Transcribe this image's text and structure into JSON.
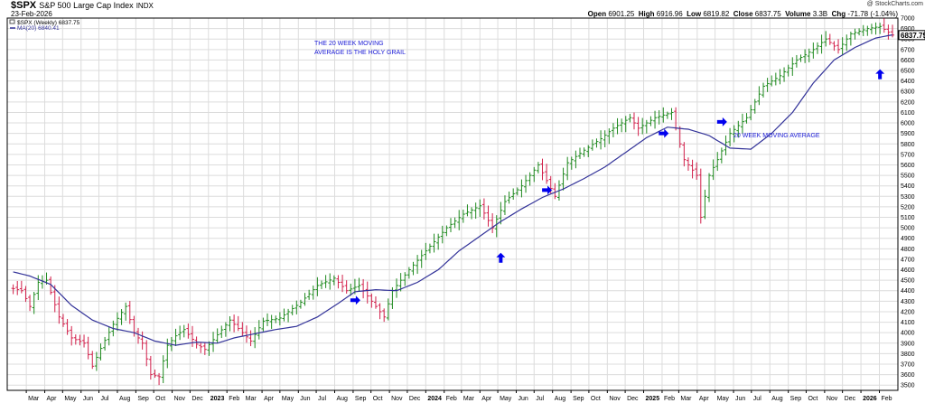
{
  "header": {
    "symbol": "$SPX",
    "name": "S&P 500 Large Cap Index",
    "exchange": "INDX",
    "date": "23-Feb-2026",
    "credit": "@ StockCharts.com",
    "open_label": "Open",
    "open": "6901.25",
    "high_label": "High",
    "high": "6916.96",
    "low_label": "Low",
    "low": "6819.82",
    "close_label": "Close",
    "close": "6837.75",
    "volume_label": "Volume",
    "volume": "3.3B",
    "chg_label": "Chg",
    "chg": "-71.78 (-1.04%)"
  },
  "legend": {
    "price_entry": "$SPX (Weekly) 6837.75",
    "ma_entry": "MA(20) 6840.41"
  },
  "colors": {
    "up_bar": "#1f8a1f",
    "down_bar": "#d21f4a",
    "ma_line": "#333399",
    "annotation": "#1a1ad6",
    "arrow": "#0000ee",
    "grid": "#dcdcdc",
    "frame": "#000000"
  },
  "chart_data": {
    "type": "ohlc",
    "interval": "weekly",
    "title": "$SPX S&P 500 Large Cap Index INDX",
    "ylim": [
      3450,
      7000
    ],
    "y_ticks": [
      3500,
      3600,
      3700,
      3800,
      3900,
      4000,
      4100,
      4200,
      4300,
      4400,
      4500,
      4600,
      4700,
      4800,
      4900,
      5000,
      5100,
      5200,
      5300,
      5400,
      5500,
      5600,
      5700,
      5800,
      5900,
      6000,
      6100,
      6200,
      6300,
      6400,
      6500,
      6600,
      6700,
      6800,
      6900,
      7000
    ],
    "y_axis_side": "right",
    "grid": true,
    "last_price_label": "6837.75",
    "ma_value_label": "6840.41",
    "x_tick_labels": [
      "Mar",
      "Apr",
      "May",
      "Jun",
      "Jul",
      "Aug",
      "Sep",
      "Oct",
      "Nov",
      "Dec",
      "2023",
      "Feb",
      "Mar",
      "Apr",
      "May",
      "Jun",
      "Jul",
      "Aug",
      "Sep",
      "Oct",
      "Nov",
      "Dec",
      "2024",
      "Feb",
      "Mar",
      "Apr",
      "May",
      "Jun",
      "Jul",
      "Aug",
      "Sep",
      "Oct",
      "Nov",
      "Dec",
      "2025",
      "Feb",
      "Mar",
      "Apr",
      "May",
      "Jun",
      "Jul",
      "Aug",
      "Sep",
      "Oct",
      "Nov",
      "Dec",
      "2026",
      "Feb"
    ],
    "bold_x_ticks": [
      "2023",
      "2024",
      "2025",
      "2026"
    ],
    "series": [
      {
        "name": "$SPX (Weekly)",
        "kind": "ohlc",
        "anchors": [
          [
            "2022-02-07",
            4420
          ],
          [
            "2022-02-21",
            4400
          ],
          [
            "2022-03-07",
            4250
          ],
          [
            "2022-03-21",
            4480
          ],
          [
            "2022-04-04",
            4500
          ],
          [
            "2022-04-25",
            4150
          ],
          [
            "2022-05-16",
            3950
          ],
          [
            "2022-06-06",
            3900
          ],
          [
            "2022-06-20",
            3680
          ],
          [
            "2022-07-04",
            3850
          ],
          [
            "2022-07-25",
            4080
          ],
          [
            "2022-08-15",
            4250
          ],
          [
            "2022-08-29",
            4000
          ],
          [
            "2022-09-12",
            3900
          ],
          [
            "2022-09-26",
            3600
          ],
          [
            "2022-10-10",
            3580
          ],
          [
            "2022-10-24",
            3880
          ],
          [
            "2022-11-07",
            3970
          ],
          [
            "2022-11-21",
            4030
          ],
          [
            "2022-12-12",
            3890
          ],
          [
            "2022-12-26",
            3840
          ],
          [
            "2023-01-16",
            3980
          ],
          [
            "2023-02-06",
            4120
          ],
          [
            "2023-03-13",
            3920
          ],
          [
            "2023-04-03",
            4110
          ],
          [
            "2023-05-01",
            4140
          ],
          [
            "2023-06-05",
            4290
          ],
          [
            "2023-07-03",
            4450
          ],
          [
            "2023-07-31",
            4520
          ],
          [
            "2023-08-21",
            4400
          ],
          [
            "2023-09-11",
            4450
          ],
          [
            "2023-10-02",
            4300
          ],
          [
            "2023-10-23",
            4150
          ],
          [
            "2023-11-06",
            4400
          ],
          [
            "2023-12-04",
            4600
          ],
          [
            "2024-01-01",
            4780
          ],
          [
            "2024-02-05",
            5000
          ],
          [
            "2024-03-04",
            5130
          ],
          [
            "2024-04-01",
            5210
          ],
          [
            "2024-04-22",
            5000
          ],
          [
            "2024-05-13",
            5250
          ],
          [
            "2024-06-10",
            5400
          ],
          [
            "2024-07-08",
            5600
          ],
          [
            "2024-08-05",
            5300
          ],
          [
            "2024-08-26",
            5620
          ],
          [
            "2024-09-23",
            5740
          ],
          [
            "2024-10-21",
            5850
          ],
          [
            "2024-11-11",
            5950
          ],
          [
            "2024-12-09",
            6050
          ],
          [
            "2024-12-23",
            5950
          ],
          [
            "2025-01-20",
            6050
          ],
          [
            "2025-02-17",
            6100
          ],
          [
            "2025-03-10",
            5650
          ],
          [
            "2025-03-31",
            5500
          ],
          [
            "2025-04-07",
            5100
          ],
          [
            "2025-04-21",
            5500
          ],
          [
            "2025-05-05",
            5650
          ],
          [
            "2025-05-26",
            5900
          ],
          [
            "2025-06-23",
            6050
          ],
          [
            "2025-07-21",
            6350
          ],
          [
            "2025-08-18",
            6450
          ],
          [
            "2025-09-15",
            6600
          ],
          [
            "2025-10-13",
            6700
          ],
          [
            "2025-11-03",
            6800
          ],
          [
            "2025-11-24",
            6700
          ],
          [
            "2025-12-15",
            6850
          ],
          [
            "2026-01-12",
            6900
          ],
          [
            "2026-02-02",
            6920
          ],
          [
            "2026-02-23",
            6838
          ]
        ]
      },
      {
        "name": "MA(20)",
        "kind": "line",
        "anchors": [
          [
            "2022-02-07",
            4580
          ],
          [
            "2022-03-07",
            4540
          ],
          [
            "2022-04-11",
            4460
          ],
          [
            "2022-05-16",
            4260
          ],
          [
            "2022-06-20",
            4120
          ],
          [
            "2022-07-25",
            4040
          ],
          [
            "2022-08-29",
            4000
          ],
          [
            "2022-10-03",
            3920
          ],
          [
            "2022-11-07",
            3880
          ],
          [
            "2022-12-12",
            3910
          ],
          [
            "2023-01-16",
            3900
          ],
          [
            "2023-02-13",
            3950
          ],
          [
            "2023-03-20",
            3990
          ],
          [
            "2023-04-24",
            4030
          ],
          [
            "2023-05-29",
            4060
          ],
          [
            "2023-07-03",
            4150
          ],
          [
            "2023-08-07",
            4280
          ],
          [
            "2023-09-04",
            4390
          ],
          [
            "2023-10-09",
            4410
          ],
          [
            "2023-11-13",
            4400
          ],
          [
            "2023-12-18",
            4480
          ],
          [
            "2024-01-22",
            4600
          ],
          [
            "2024-02-26",
            4780
          ],
          [
            "2024-04-01",
            4920
          ],
          [
            "2024-05-06",
            5060
          ],
          [
            "2024-06-10",
            5180
          ],
          [
            "2024-07-15",
            5290
          ],
          [
            "2024-08-19",
            5370
          ],
          [
            "2024-09-23",
            5470
          ],
          [
            "2024-10-28",
            5580
          ],
          [
            "2024-12-02",
            5720
          ],
          [
            "2025-01-06",
            5860
          ],
          [
            "2025-02-10",
            5960
          ],
          [
            "2025-03-17",
            5940
          ],
          [
            "2025-04-21",
            5880
          ],
          [
            "2025-05-26",
            5760
          ],
          [
            "2025-06-30",
            5750
          ],
          [
            "2025-08-04",
            5900
          ],
          [
            "2025-09-08",
            6100
          ],
          [
            "2025-10-13",
            6380
          ],
          [
            "2025-11-17",
            6600
          ],
          [
            "2025-12-22",
            6720
          ],
          [
            "2026-01-26",
            6810
          ],
          [
            "2026-02-23",
            6840
          ]
        ]
      }
    ],
    "annotations": [
      {
        "text_line1": "THE 20 WEEK MOVING",
        "text_line2": "AVERAGE IS THE HOLY GRAIL",
        "kind": "note"
      },
      {
        "text": "20 WEEK MOVING AVERAGE",
        "kind": "label"
      }
    ],
    "markers": [
      {
        "kind": "arrow-right",
        "date": "2023-09-04",
        "price": 4310
      },
      {
        "kind": "arrow-up",
        "date": "2024-05-06",
        "price": 4710
      },
      {
        "kind": "arrow-right",
        "date": "2024-07-22",
        "price": 5360
      },
      {
        "kind": "arrow-right",
        "date": "2025-02-03",
        "price": 5900
      },
      {
        "kind": "arrow-right",
        "date": "2025-05-12",
        "price": 6010
      },
      {
        "kind": "arrow-up",
        "date": "2026-02-02",
        "price": 6460
      }
    ]
  }
}
